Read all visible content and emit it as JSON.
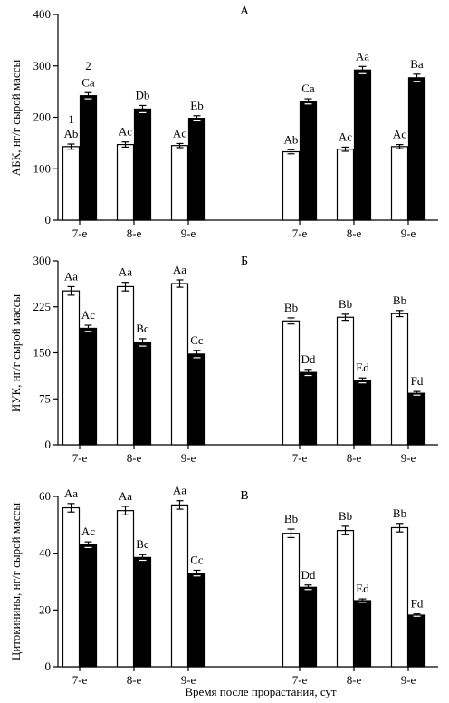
{
  "figure": {
    "xlabel": "Время после прорастания, сут"
  },
  "chart_data": [
    {
      "type": "bar",
      "panel_label": "А",
      "ylabel": "АБК, нг/г сырой массы",
      "ylim": [
        0,
        400
      ],
      "yticks": [
        "0",
        "100",
        "200",
        "300",
        "400"
      ],
      "yticks_values": [
        0,
        100,
        200,
        300,
        400
      ],
      "legend_numbers": [
        "1",
        "2"
      ],
      "groups": [
        {
          "categories": [
            "7-е",
            "8-е",
            "9-е"
          ],
          "series": [
            {
              "values": [
                143,
                147,
                145
              ],
              "errors": [
                5,
                5,
                4
              ],
              "labels": [
                "Ab",
                "Ac",
                "Ac"
              ],
              "fill": "white"
            },
            {
              "values": [
                242,
                216,
                198
              ],
              "errors": [
                6,
                7,
                5
              ],
              "labels": [
                "Ca",
                "Db",
                "Eb"
              ],
              "fill": "black"
            }
          ]
        },
        {
          "categories": [
            "7-е",
            "8-е",
            "9-е"
          ],
          "series": [
            {
              "values": [
                133,
                138,
                143
              ],
              "errors": [
                4,
                4,
                4
              ],
              "labels": [
                "Ab",
                "Ac",
                "Ac"
              ],
              "fill": "white"
            },
            {
              "values": [
                231,
                292,
                277
              ],
              "errors": [
                5,
                7,
                7
              ],
              "labels": [
                "Ca",
                "Aa",
                "Ba"
              ],
              "fill": "black"
            }
          ]
        }
      ]
    },
    {
      "type": "bar",
      "panel_label": "Б",
      "ylabel": "ИУК, нг/г сырой массы",
      "ylim": [
        0,
        300
      ],
      "yticks": [
        "0",
        "75",
        "150",
        "225",
        "300"
      ],
      "yticks_values": [
        0,
        75,
        150,
        225,
        300
      ],
      "groups": [
        {
          "categories": [
            "7-е",
            "8-е",
            "9-е"
          ],
          "series": [
            {
              "values": [
                251,
                258,
                263
              ],
              "errors": [
                7,
                7,
                6
              ],
              "labels": [
                "Aa",
                "Aa",
                "Aa"
              ],
              "fill": "white"
            },
            {
              "values": [
                190,
                167,
                148
              ],
              "errors": [
                5,
                6,
                6
              ],
              "labels": [
                "Ac",
                "Bc",
                "Cc"
              ],
              "fill": "black"
            }
          ]
        },
        {
          "categories": [
            "7-е",
            "8-е",
            "9-е"
          ],
          "series": [
            {
              "values": [
                202,
                208,
                214
              ],
              "errors": [
                5,
                5,
                5
              ],
              "labels": [
                "Bb",
                "Bb",
                "Bb"
              ],
              "fill": "white"
            },
            {
              "values": [
                118,
                105,
                84
              ],
              "errors": [
                5,
                4,
                3
              ],
              "labels": [
                "Dd",
                "Ed",
                "Fd"
              ],
              "fill": "black"
            }
          ]
        }
      ]
    },
    {
      "type": "bar",
      "panel_label": "В",
      "ylabel": "Цитокинины, нг/г сырой массы",
      "ylim": [
        0,
        60
      ],
      "yticks": [
        "0",
        "20",
        "40",
        "60"
      ],
      "yticks_values": [
        0,
        20,
        40,
        60
      ],
      "groups": [
        {
          "categories": [
            "7-е",
            "8-е",
            "9-е"
          ],
          "series": [
            {
              "values": [
                56,
                55,
                57
              ],
              "errors": [
                1.5,
                1.5,
                1.5
              ],
              "labels": [
                "Aa",
                "Aa",
                "Aa"
              ],
              "fill": "white"
            },
            {
              "values": [
                43,
                38.5,
                33
              ],
              "errors": [
                1,
                1,
                1
              ],
              "labels": [
                "Ac",
                "Bc",
                "Cc"
              ],
              "fill": "black"
            }
          ]
        },
        {
          "categories": [
            "7-е",
            "8-е",
            "9-е"
          ],
          "series": [
            {
              "values": [
                47,
                48,
                49
              ],
              "errors": [
                1.5,
                1.5,
                1.5
              ],
              "labels": [
                "Bb",
                "Bb",
                "Bb"
              ],
              "fill": "white"
            },
            {
              "values": [
                28,
                23.3,
                18.2
              ],
              "errors": [
                0.8,
                0.6,
                0.4
              ],
              "labels": [
                "Dd",
                "Ed",
                "Fd"
              ],
              "fill": "black"
            }
          ]
        }
      ]
    }
  ]
}
